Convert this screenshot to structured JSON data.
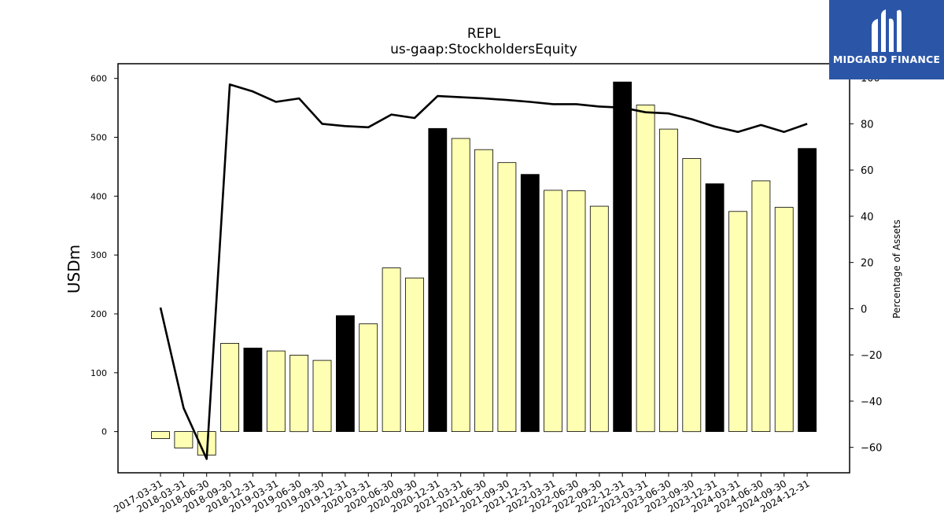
{
  "chart_data": {
    "type": "bar",
    "title": "REPL",
    "subtitle": "us-gaap:StockholdersEquity",
    "ylabel": "USDm",
    "ylabel_right": "Percentage of Assets",
    "ylim": [
      -70,
      625
    ],
    "ylim_right": [
      -71,
      106
    ],
    "yticks": [
      0,
      100,
      200,
      300,
      400,
      500,
      600
    ],
    "yticks_right": [
      -60,
      -40,
      -20,
      0,
      20,
      40,
      60,
      80,
      100
    ],
    "categories": [
      "2017-03-31",
      "2018-03-31",
      "2018-06-30",
      "2018-09-30",
      "2018-12-31",
      "2019-03-31",
      "2019-06-30",
      "2019-09-30",
      "2019-12-31",
      "2020-03-31",
      "2020-06-30",
      "2020-09-30",
      "2020-12-31",
      "2021-03-31",
      "2021-06-30",
      "2021-09-30",
      "2021-12-31",
      "2022-03-31",
      "2022-06-30",
      "2022-09-30",
      "2022-12-31",
      "2023-03-31",
      "2023-06-30",
      "2023-09-30",
      "2023-12-31",
      "2024-03-31",
      "2024-06-30",
      "2024-09-30",
      "2024-12-31"
    ],
    "series": [
      {
        "type": "bar",
        "values": [
          -12,
          -28,
          -40,
          150,
          142,
          137,
          130,
          121,
          197,
          183,
          278,
          261,
          515,
          498,
          479,
          457,
          437,
          410,
          409,
          383,
          594,
          555,
          514,
          464,
          421,
          374,
          426,
          381,
          481
        ],
        "fiscal_year_end": [
          false,
          false,
          false,
          false,
          true,
          false,
          false,
          false,
          true,
          false,
          false,
          false,
          true,
          false,
          false,
          false,
          true,
          false,
          false,
          false,
          true,
          false,
          false,
          false,
          true,
          false,
          false,
          false,
          true
        ]
      },
      {
        "type": "line",
        "axis": "right",
        "values": [
          0.5,
          -43,
          -65,
          97,
          94,
          89.5,
          91,
          80,
          79,
          78.5,
          84,
          82.5,
          92,
          91.5,
          91,
          90.3,
          89.5,
          88.5,
          88.5,
          87.5,
          87,
          85,
          84.5,
          82,
          78.8,
          76.5,
          79.5,
          76.5,
          80
        ]
      }
    ],
    "colors": {
      "bar_fill": "#ffffb3",
      "bar_fill_year_end": "#000000",
      "bar_edge": "#000000",
      "line": "#000000"
    },
    "grid": false,
    "legend": "none"
  },
  "logo": {
    "text": "MIDGARD FINANCE",
    "background": "#2b56a8"
  }
}
